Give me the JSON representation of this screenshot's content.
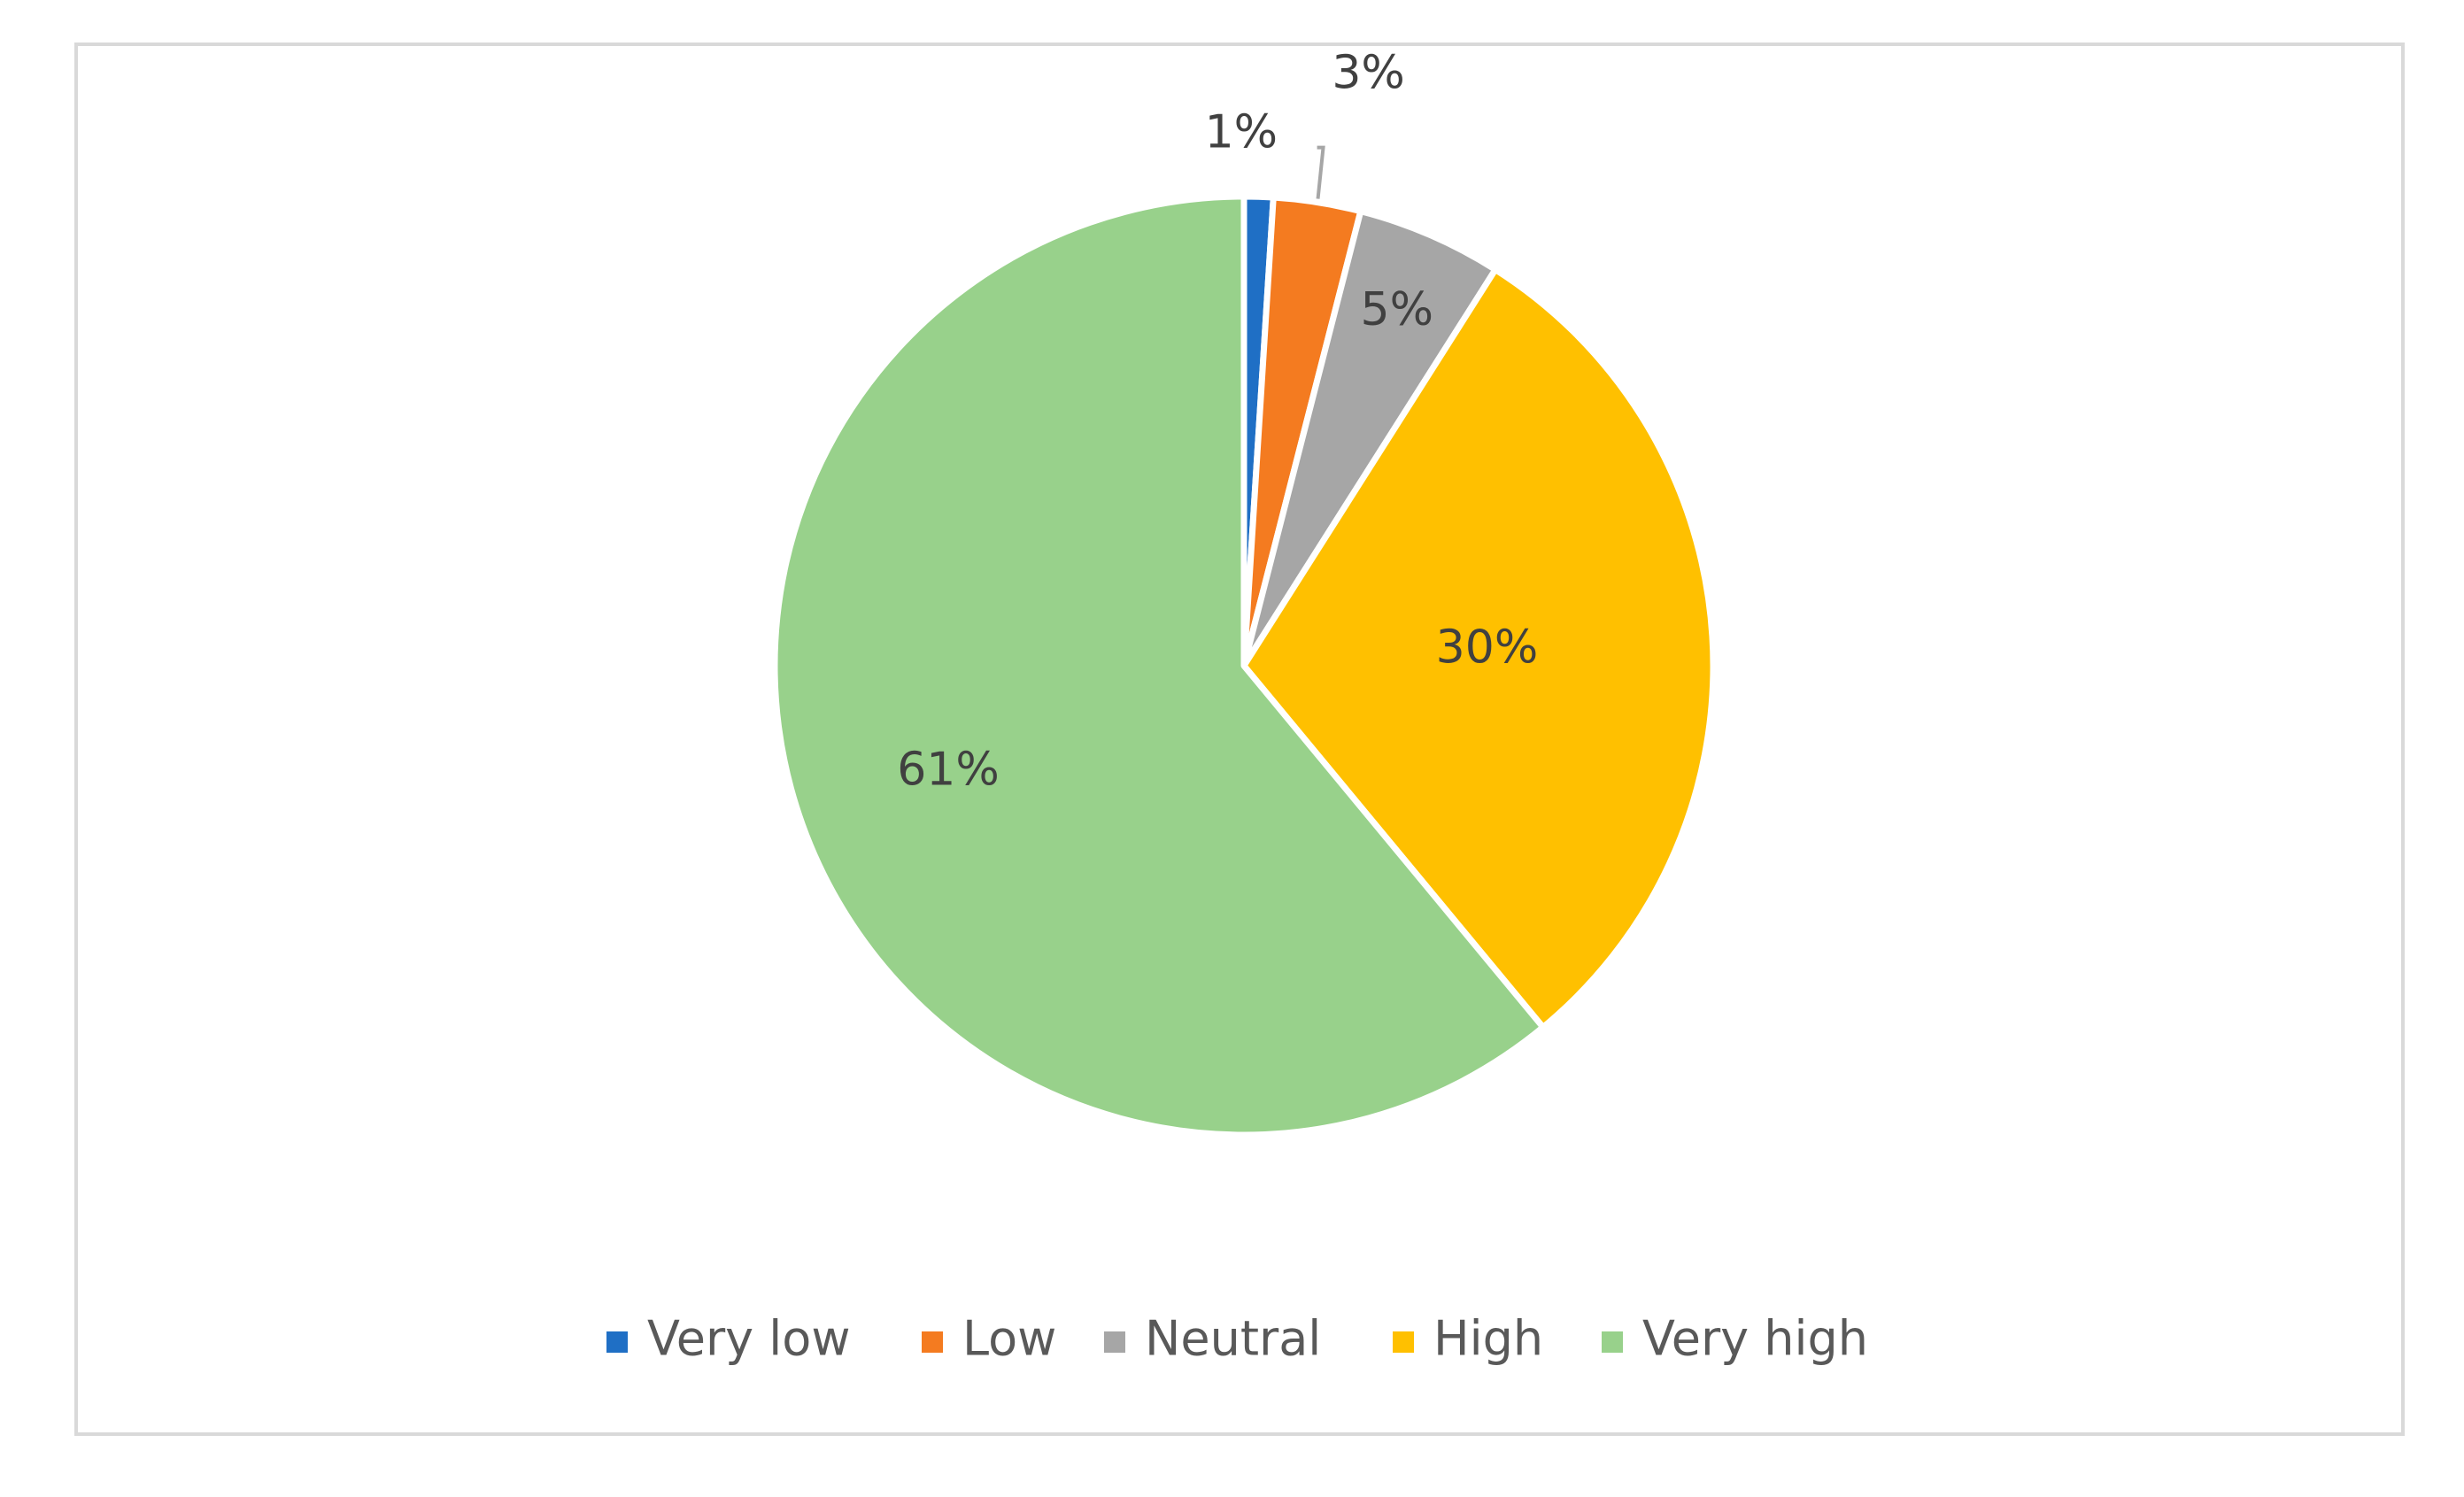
{
  "chart_data": {
    "type": "pie",
    "title": "",
    "categories": [
      "Very low",
      "Low",
      "Neutral",
      "High",
      "Very high"
    ],
    "values": [
      1,
      3,
      5,
      30,
      61
    ],
    "value_labels": [
      "1%",
      "3%",
      "5%",
      "30%",
      "61%"
    ],
    "colors": [
      "#1f6fc5",
      "#f47b20",
      "#a6a6a6",
      "#ffc000",
      "#98d18b"
    ],
    "label_colors": [
      "#404040",
      "#404040",
      "#404040",
      "#404040",
      "#404040"
    ],
    "legend": {
      "placement": "bottom",
      "entries": [
        "Very low",
        "Low",
        "Neutral",
        "High",
        "Very high"
      ]
    },
    "start_angle": "12 o'clock",
    "direction": "clockwise"
  }
}
